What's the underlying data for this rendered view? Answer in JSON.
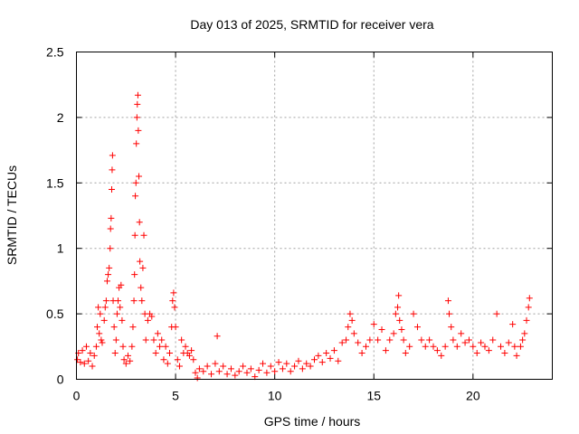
{
  "chart_data": {
    "type": "scatter",
    "title": "Day 013 of 2025, SRMTID for receiver vera",
    "xlabel": "GPS time / hours",
    "ylabel": "SRMTID / TECUs",
    "xlim": [
      0,
      24
    ],
    "ylim": [
      0,
      2.5
    ],
    "x_ticks": [
      {
        "value": 0,
        "label": "0"
      },
      {
        "value": 5,
        "label": "5"
      },
      {
        "value": 10,
        "label": "10"
      },
      {
        "value": 15,
        "label": "15"
      },
      {
        "value": 20,
        "label": "20"
      }
    ],
    "y_ticks": [
      {
        "value": 0,
        "label": "0"
      },
      {
        "value": 0.5,
        "label": "0.5"
      },
      {
        "value": 1,
        "label": "1"
      },
      {
        "value": 1.5,
        "label": "1.5"
      },
      {
        "value": 2,
        "label": "2"
      },
      {
        "value": 2.5,
        "label": "2.5"
      }
    ],
    "grid": true,
    "marker": "+",
    "series": [
      {
        "name": "SRMTID",
        "color": "#ff0000",
        "points": [
          [
            0.05,
            0.15
          ],
          [
            0.1,
            0.2
          ],
          [
            0.2,
            0.13
          ],
          [
            0.3,
            0.22
          ],
          [
            0.4,
            0.12
          ],
          [
            0.5,
            0.25
          ],
          [
            0.6,
            0.14
          ],
          [
            0.7,
            0.2
          ],
          [
            0.8,
            0.1
          ],
          [
            0.9,
            0.18
          ],
          [
            1.0,
            0.25
          ],
          [
            1.05,
            0.4
          ],
          [
            1.1,
            0.55
          ],
          [
            1.15,
            0.35
          ],
          [
            1.2,
            0.5
          ],
          [
            1.25,
            0.3
          ],
          [
            1.3,
            0.28
          ],
          [
            1.4,
            0.45
          ],
          [
            1.45,
            0.55
          ],
          [
            1.5,
            0.6
          ],
          [
            1.55,
            0.75
          ],
          [
            1.6,
            0.8
          ],
          [
            1.65,
            0.85
          ],
          [
            1.7,
            1.0
          ],
          [
            1.72,
            1.15
          ],
          [
            1.75,
            1.23
          ],
          [
            1.78,
            1.45
          ],
          [
            1.8,
            1.6
          ],
          [
            1.82,
            1.71
          ],
          [
            1.85,
            0.6
          ],
          [
            1.9,
            0.4
          ],
          [
            1.95,
            0.2
          ],
          [
            2.0,
            0.3
          ],
          [
            2.05,
            0.5
          ],
          [
            2.1,
            0.6
          ],
          [
            2.15,
            0.7
          ],
          [
            2.2,
            0.55
          ],
          [
            2.25,
            0.72
          ],
          [
            2.3,
            0.45
          ],
          [
            2.35,
            0.25
          ],
          [
            2.4,
            0.15
          ],
          [
            2.5,
            0.12
          ],
          [
            2.6,
            0.18
          ],
          [
            2.7,
            0.14
          ],
          [
            2.8,
            0.25
          ],
          [
            2.85,
            0.4
          ],
          [
            2.9,
            0.6
          ],
          [
            2.93,
            0.8
          ],
          [
            2.95,
            1.1
          ],
          [
            2.97,
            1.4
          ],
          [
            3.0,
            1.5
          ],
          [
            3.02,
            1.8
          ],
          [
            3.05,
            2.0
          ],
          [
            3.07,
            2.1
          ],
          [
            3.1,
            2.17
          ],
          [
            3.12,
            1.9
          ],
          [
            3.15,
            1.55
          ],
          [
            3.18,
            1.2
          ],
          [
            3.2,
            0.9
          ],
          [
            3.25,
            0.7
          ],
          [
            3.3,
            0.6
          ],
          [
            3.35,
            0.85
          ],
          [
            3.4,
            1.1
          ],
          [
            3.45,
            0.5
          ],
          [
            3.5,
            0.3
          ],
          [
            3.6,
            0.45
          ],
          [
            3.7,
            0.5
          ],
          [
            3.8,
            0.48
          ],
          [
            3.9,
            0.3
          ],
          [
            4.0,
            0.2
          ],
          [
            4.1,
            0.35
          ],
          [
            4.2,
            0.25
          ],
          [
            4.3,
            0.3
          ],
          [
            4.4,
            0.15
          ],
          [
            4.5,
            0.25
          ],
          [
            4.6,
            0.12
          ],
          [
            4.7,
            0.2
          ],
          [
            4.8,
            0.4
          ],
          [
            4.85,
            0.6
          ],
          [
            4.9,
            0.66
          ],
          [
            4.95,
            0.55
          ],
          [
            5.0,
            0.4
          ],
          [
            5.1,
            0.15
          ],
          [
            5.2,
            0.1
          ],
          [
            5.3,
            0.3
          ],
          [
            5.4,
            0.2
          ],
          [
            5.5,
            0.25
          ],
          [
            5.6,
            0.2
          ],
          [
            5.7,
            0.18
          ],
          [
            5.8,
            0.22
          ],
          [
            5.9,
            0.15
          ],
          [
            6.0,
            0.05
          ],
          [
            6.1,
            0.01
          ],
          [
            6.2,
            0.08
          ],
          [
            6.4,
            0.06
          ],
          [
            6.6,
            0.1
          ],
          [
            6.8,
            0.04
          ],
          [
            7.0,
            0.12
          ],
          [
            7.1,
            0.33
          ],
          [
            7.2,
            0.06
          ],
          [
            7.4,
            0.1
          ],
          [
            7.6,
            0.04
          ],
          [
            7.8,
            0.08
          ],
          [
            8.0,
            0.03
          ],
          [
            8.2,
            0.06
          ],
          [
            8.4,
            0.1
          ],
          [
            8.6,
            0.05
          ],
          [
            8.8,
            0.08
          ],
          [
            9.0,
            0.02
          ],
          [
            9.2,
            0.07
          ],
          [
            9.4,
            0.12
          ],
          [
            9.6,
            0.05
          ],
          [
            9.8,
            0.1
          ],
          [
            10.0,
            0.06
          ],
          [
            10.2,
            0.13
          ],
          [
            10.4,
            0.08
          ],
          [
            10.6,
            0.12
          ],
          [
            10.8,
            0.06
          ],
          [
            11.0,
            0.1
          ],
          [
            11.2,
            0.14
          ],
          [
            11.4,
            0.08
          ],
          [
            11.6,
            0.12
          ],
          [
            11.8,
            0.1
          ],
          [
            12.0,
            0.15
          ],
          [
            12.2,
            0.18
          ],
          [
            12.4,
            0.13
          ],
          [
            12.6,
            0.2
          ],
          [
            12.8,
            0.16
          ],
          [
            13.0,
            0.22
          ],
          [
            13.2,
            0.14
          ],
          [
            13.4,
            0.28
          ],
          [
            13.6,
            0.3
          ],
          [
            13.7,
            0.4
          ],
          [
            13.8,
            0.5
          ],
          [
            13.9,
            0.45
          ],
          [
            14.0,
            0.35
          ],
          [
            14.2,
            0.28
          ],
          [
            14.4,
            0.2
          ],
          [
            14.6,
            0.25
          ],
          [
            14.8,
            0.3
          ],
          [
            15.0,
            0.42
          ],
          [
            15.2,
            0.3
          ],
          [
            15.4,
            0.38
          ],
          [
            15.6,
            0.22
          ],
          [
            15.8,
            0.3
          ],
          [
            16.0,
            0.35
          ],
          [
            16.1,
            0.5
          ],
          [
            16.2,
            0.55
          ],
          [
            16.25,
            0.64
          ],
          [
            16.3,
            0.45
          ],
          [
            16.4,
            0.38
          ],
          [
            16.5,
            0.3
          ],
          [
            16.6,
            0.2
          ],
          [
            16.8,
            0.25
          ],
          [
            17.0,
            0.5
          ],
          [
            17.2,
            0.4
          ],
          [
            17.4,
            0.3
          ],
          [
            17.6,
            0.25
          ],
          [
            17.8,
            0.3
          ],
          [
            18.0,
            0.25
          ],
          [
            18.2,
            0.22
          ],
          [
            18.4,
            0.18
          ],
          [
            18.6,
            0.25
          ],
          [
            18.75,
            0.6
          ],
          [
            18.8,
            0.5
          ],
          [
            18.9,
            0.4
          ],
          [
            19.0,
            0.3
          ],
          [
            19.2,
            0.25
          ],
          [
            19.4,
            0.35
          ],
          [
            19.6,
            0.28
          ],
          [
            19.8,
            0.3
          ],
          [
            20.0,
            0.25
          ],
          [
            20.2,
            0.2
          ],
          [
            20.4,
            0.28
          ],
          [
            20.6,
            0.25
          ],
          [
            20.8,
            0.22
          ],
          [
            21.0,
            0.3
          ],
          [
            21.2,
            0.5
          ],
          [
            21.4,
            0.25
          ],
          [
            21.6,
            0.2
          ],
          [
            21.8,
            0.28
          ],
          [
            22.0,
            0.42
          ],
          [
            22.1,
            0.25
          ],
          [
            22.2,
            0.18
          ],
          [
            22.4,
            0.25
          ],
          [
            22.5,
            0.3
          ],
          [
            22.6,
            0.35
          ],
          [
            22.7,
            0.45
          ],
          [
            22.8,
            0.55
          ],
          [
            22.85,
            0.62
          ]
        ]
      }
    ]
  }
}
